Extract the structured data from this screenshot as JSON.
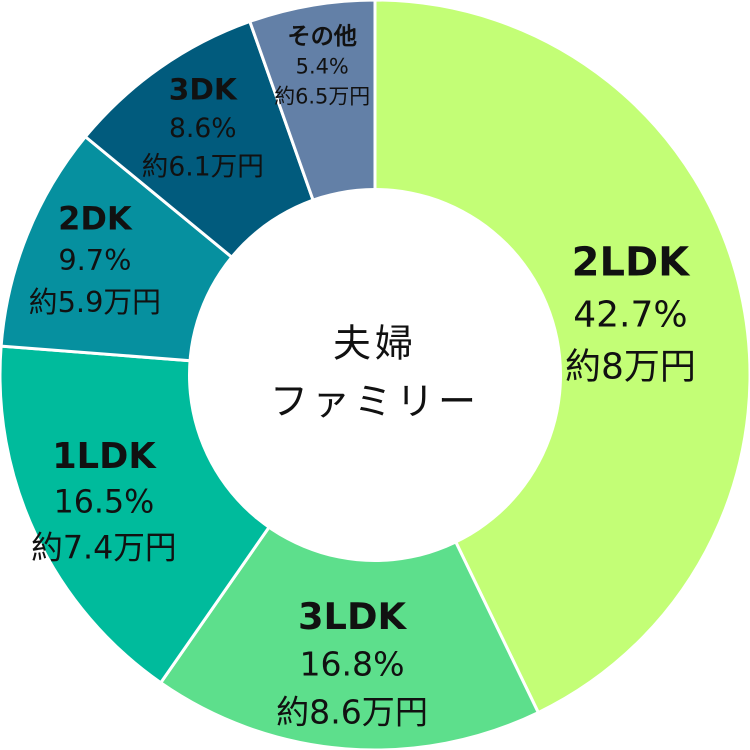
{
  "chart_data": {
    "type": "pie",
    "variant": "donut",
    "center_title": [
      "夫婦",
      "ファミリー"
    ],
    "slices": [
      {
        "category": "2LDK",
        "percent": 42.7,
        "percent_label": "42.7%",
        "amount_label": "約8万円",
        "color": "#c3fe76"
      },
      {
        "category": "3LDK",
        "percent": 16.8,
        "percent_label": "16.8%",
        "amount_label": "約8.6万円",
        "color": "#5ddf8c"
      },
      {
        "category": "1LDK",
        "percent": 16.5,
        "percent_label": "16.5%",
        "amount_label": "約7.4万円",
        "color": "#00bb9c"
      },
      {
        "category": "2DK",
        "percent": 9.7,
        "percent_label": "9.7%",
        "amount_label": "約5.9万円",
        "color": "#06909f"
      },
      {
        "category": "3DK",
        "percent": 8.6,
        "percent_label": "8.6%",
        "amount_label": "約6.1万円",
        "color": "#015b7d"
      },
      {
        "category": "その他",
        "percent": 5.4,
        "percent_label": "5.4%",
        "amount_label": "約6.5万円",
        "color": "#6380a7"
      }
    ]
  }
}
